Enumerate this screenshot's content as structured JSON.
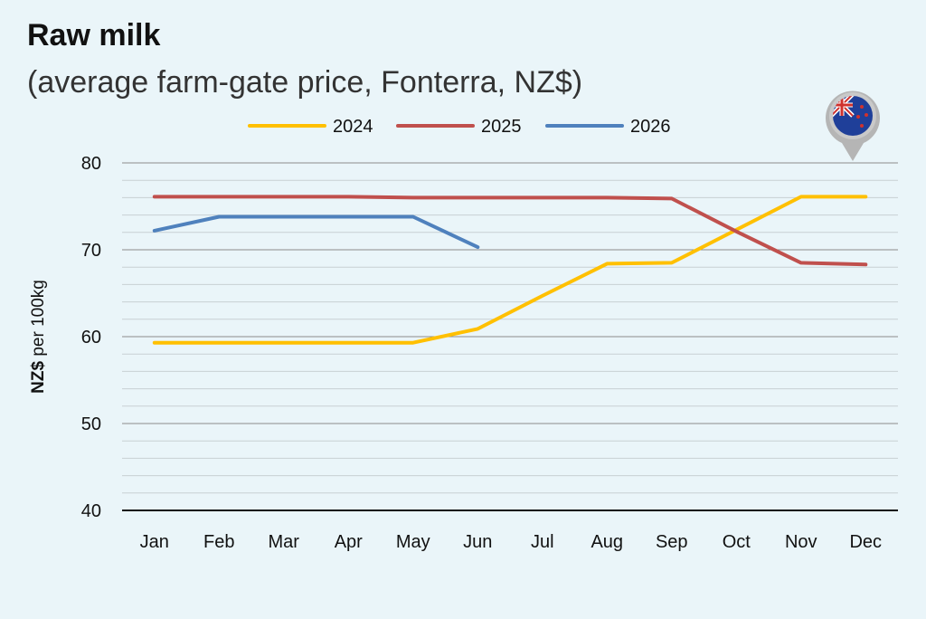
{
  "chart_data": {
    "type": "line",
    "title": "Raw milk",
    "subtitle": "(average farm-gate price, Fonterra, NZ$)",
    "xlabel": "",
    "ylabel_bold": "NZ$",
    "ylabel_rest": " per 100kg",
    "ylim": [
      40,
      80
    ],
    "yticks": [
      40,
      50,
      60,
      70,
      80
    ],
    "minor_grid_step": 2,
    "grid": true,
    "legend_position": "top",
    "categories": [
      "Jan",
      "Feb",
      "Mar",
      "Apr",
      "May",
      "Jun",
      "Jul",
      "Aug",
      "Sep",
      "Oct",
      "Nov",
      "Dec"
    ],
    "series": [
      {
        "name": "2024",
        "color": "#ffc000",
        "values": [
          59.3,
          59.3,
          59.3,
          59.3,
          59.3,
          60.9,
          64.7,
          68.4,
          68.5,
          72.3,
          76.1,
          76.1
        ]
      },
      {
        "name": "2025",
        "color": "#c0504d",
        "values": [
          76.1,
          76.1,
          76.1,
          76.1,
          76.0,
          76.0,
          76.0,
          76.0,
          75.9,
          72.1,
          68.5,
          68.3
        ]
      },
      {
        "name": "2026",
        "color": "#4f81bd",
        "values": [
          72.2,
          73.8,
          73.8,
          73.8,
          73.8,
          70.3,
          null,
          null,
          null,
          null,
          null,
          null
        ]
      }
    ],
    "flag_icon": "new-zealand-flag-pin-icon"
  }
}
